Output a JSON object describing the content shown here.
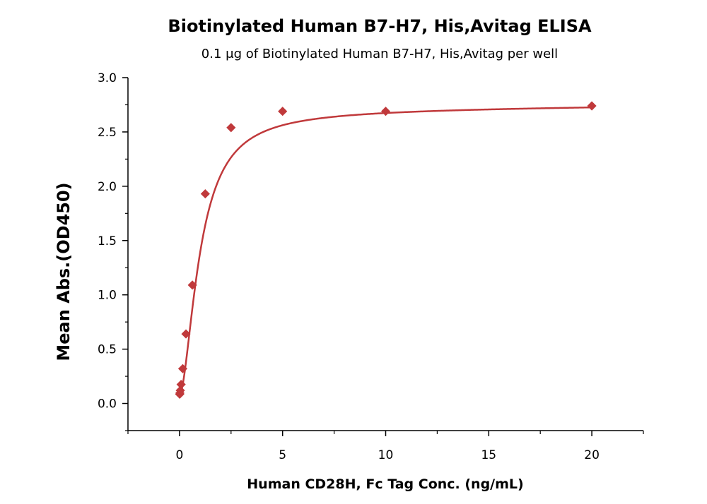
{
  "chart_data": {
    "type": "scatter",
    "title": "Biotinylated Human B7-H7, His,Avitag ELISA",
    "subtitle": "0.1 μg of Biotinylated Human B7-H7, His,Avitag per well",
    "xlabel": "Human CD28H, Fc Tag Conc. (ng/mL)",
    "ylabel": "Mean Abs.(OD450)",
    "xlim": [
      -2.5,
      22.5
    ],
    "ylim": [
      -0.25,
      3.0
    ],
    "x_ticks": [
      "0",
      "5",
      "10",
      "15",
      "20"
    ],
    "y_ticks": [
      "0.0",
      "0.5",
      "1.0",
      "1.5",
      "2.0",
      "2.5",
      "3.0"
    ],
    "grid": false,
    "legend": "none",
    "marker": "diamond",
    "color": "#c0393b",
    "series": [
      {
        "x": [
          0.0098,
          0.0195,
          0.039,
          0.078,
          0.156,
          0.3125,
          0.625,
          1.25,
          2.5,
          5,
          10,
          20
        ],
        "y": [
          0.085,
          0.095,
          0.12,
          0.175,
          0.32,
          0.64,
          1.09,
          1.93,
          2.54,
          2.69,
          2.69,
          2.74
        ],
        "fit": "4PL"
      }
    ]
  }
}
